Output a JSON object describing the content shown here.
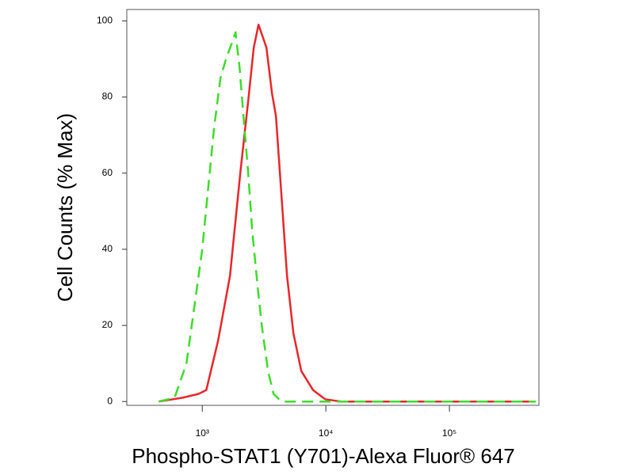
{
  "chart_data": {
    "type": "line",
    "xlabel": "Phospho-STAT1 (Y701)-Alexa Fluor® 647",
    "ylabel": "Cell Counts (% Max)",
    "xscale": "log",
    "xlim": [
      245,
      530000
    ],
    "ylim": [
      -1,
      103
    ],
    "xticks": [
      {
        "value": 1000,
        "label": "10³"
      },
      {
        "value": 10000,
        "label": "10⁴"
      },
      {
        "value": 100000,
        "label": "10⁵"
      }
    ],
    "yticks": [
      0,
      20,
      40,
      60,
      80,
      100
    ],
    "series": [
      {
        "color": "#e8262a",
        "dash": false,
        "x": [
          444,
          692,
          929,
          1077,
          1343,
          1675,
          2031,
          2355,
          2611,
          2853,
          3306,
          3664,
          3945,
          4377,
          4853,
          5462,
          6327,
          7888,
          9864,
          13240,
          500000
        ],
        "values": [
          0,
          1,
          2,
          3,
          16,
          33,
          60,
          79,
          93,
          99,
          93,
          81,
          75,
          54,
          33,
          18,
          8,
          3,
          0.6,
          0,
          0
        ]
      },
      {
        "color": "#3ddc2a",
        "dash": true,
        "x": [
          444,
          597,
          745,
          863,
          1000,
          1109,
          1248,
          1404,
          1556,
          1726,
          1858,
          2000,
          2153,
          2355,
          2535,
          2812,
          3029,
          3406,
          3776,
          4377,
          500000
        ],
        "values": [
          0,
          1,
          10,
          25,
          40,
          55,
          72,
          85,
          90,
          94,
          97,
          88,
          75,
          60,
          45,
          30,
          20,
          8,
          2,
          0,
          0
        ]
      }
    ]
  }
}
